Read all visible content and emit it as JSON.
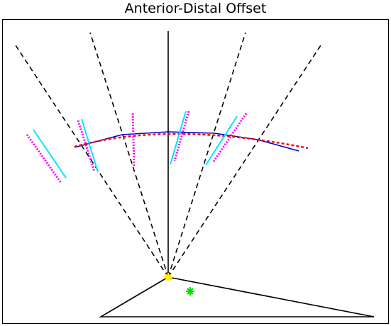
{
  "title": "Anterior-Distal Offset",
  "colors": {
    "frame": "#000000",
    "ray": "#000000",
    "axis": "#000000",
    "arc": "#ff0000",
    "polyline": "#0000ff",
    "cyan_segment": "#00ffff",
    "magenta_segment": "#ff00ff",
    "origin_marker": "#ffff00",
    "green_marker": "#00ff00",
    "triangle": "#000000"
  }
}
